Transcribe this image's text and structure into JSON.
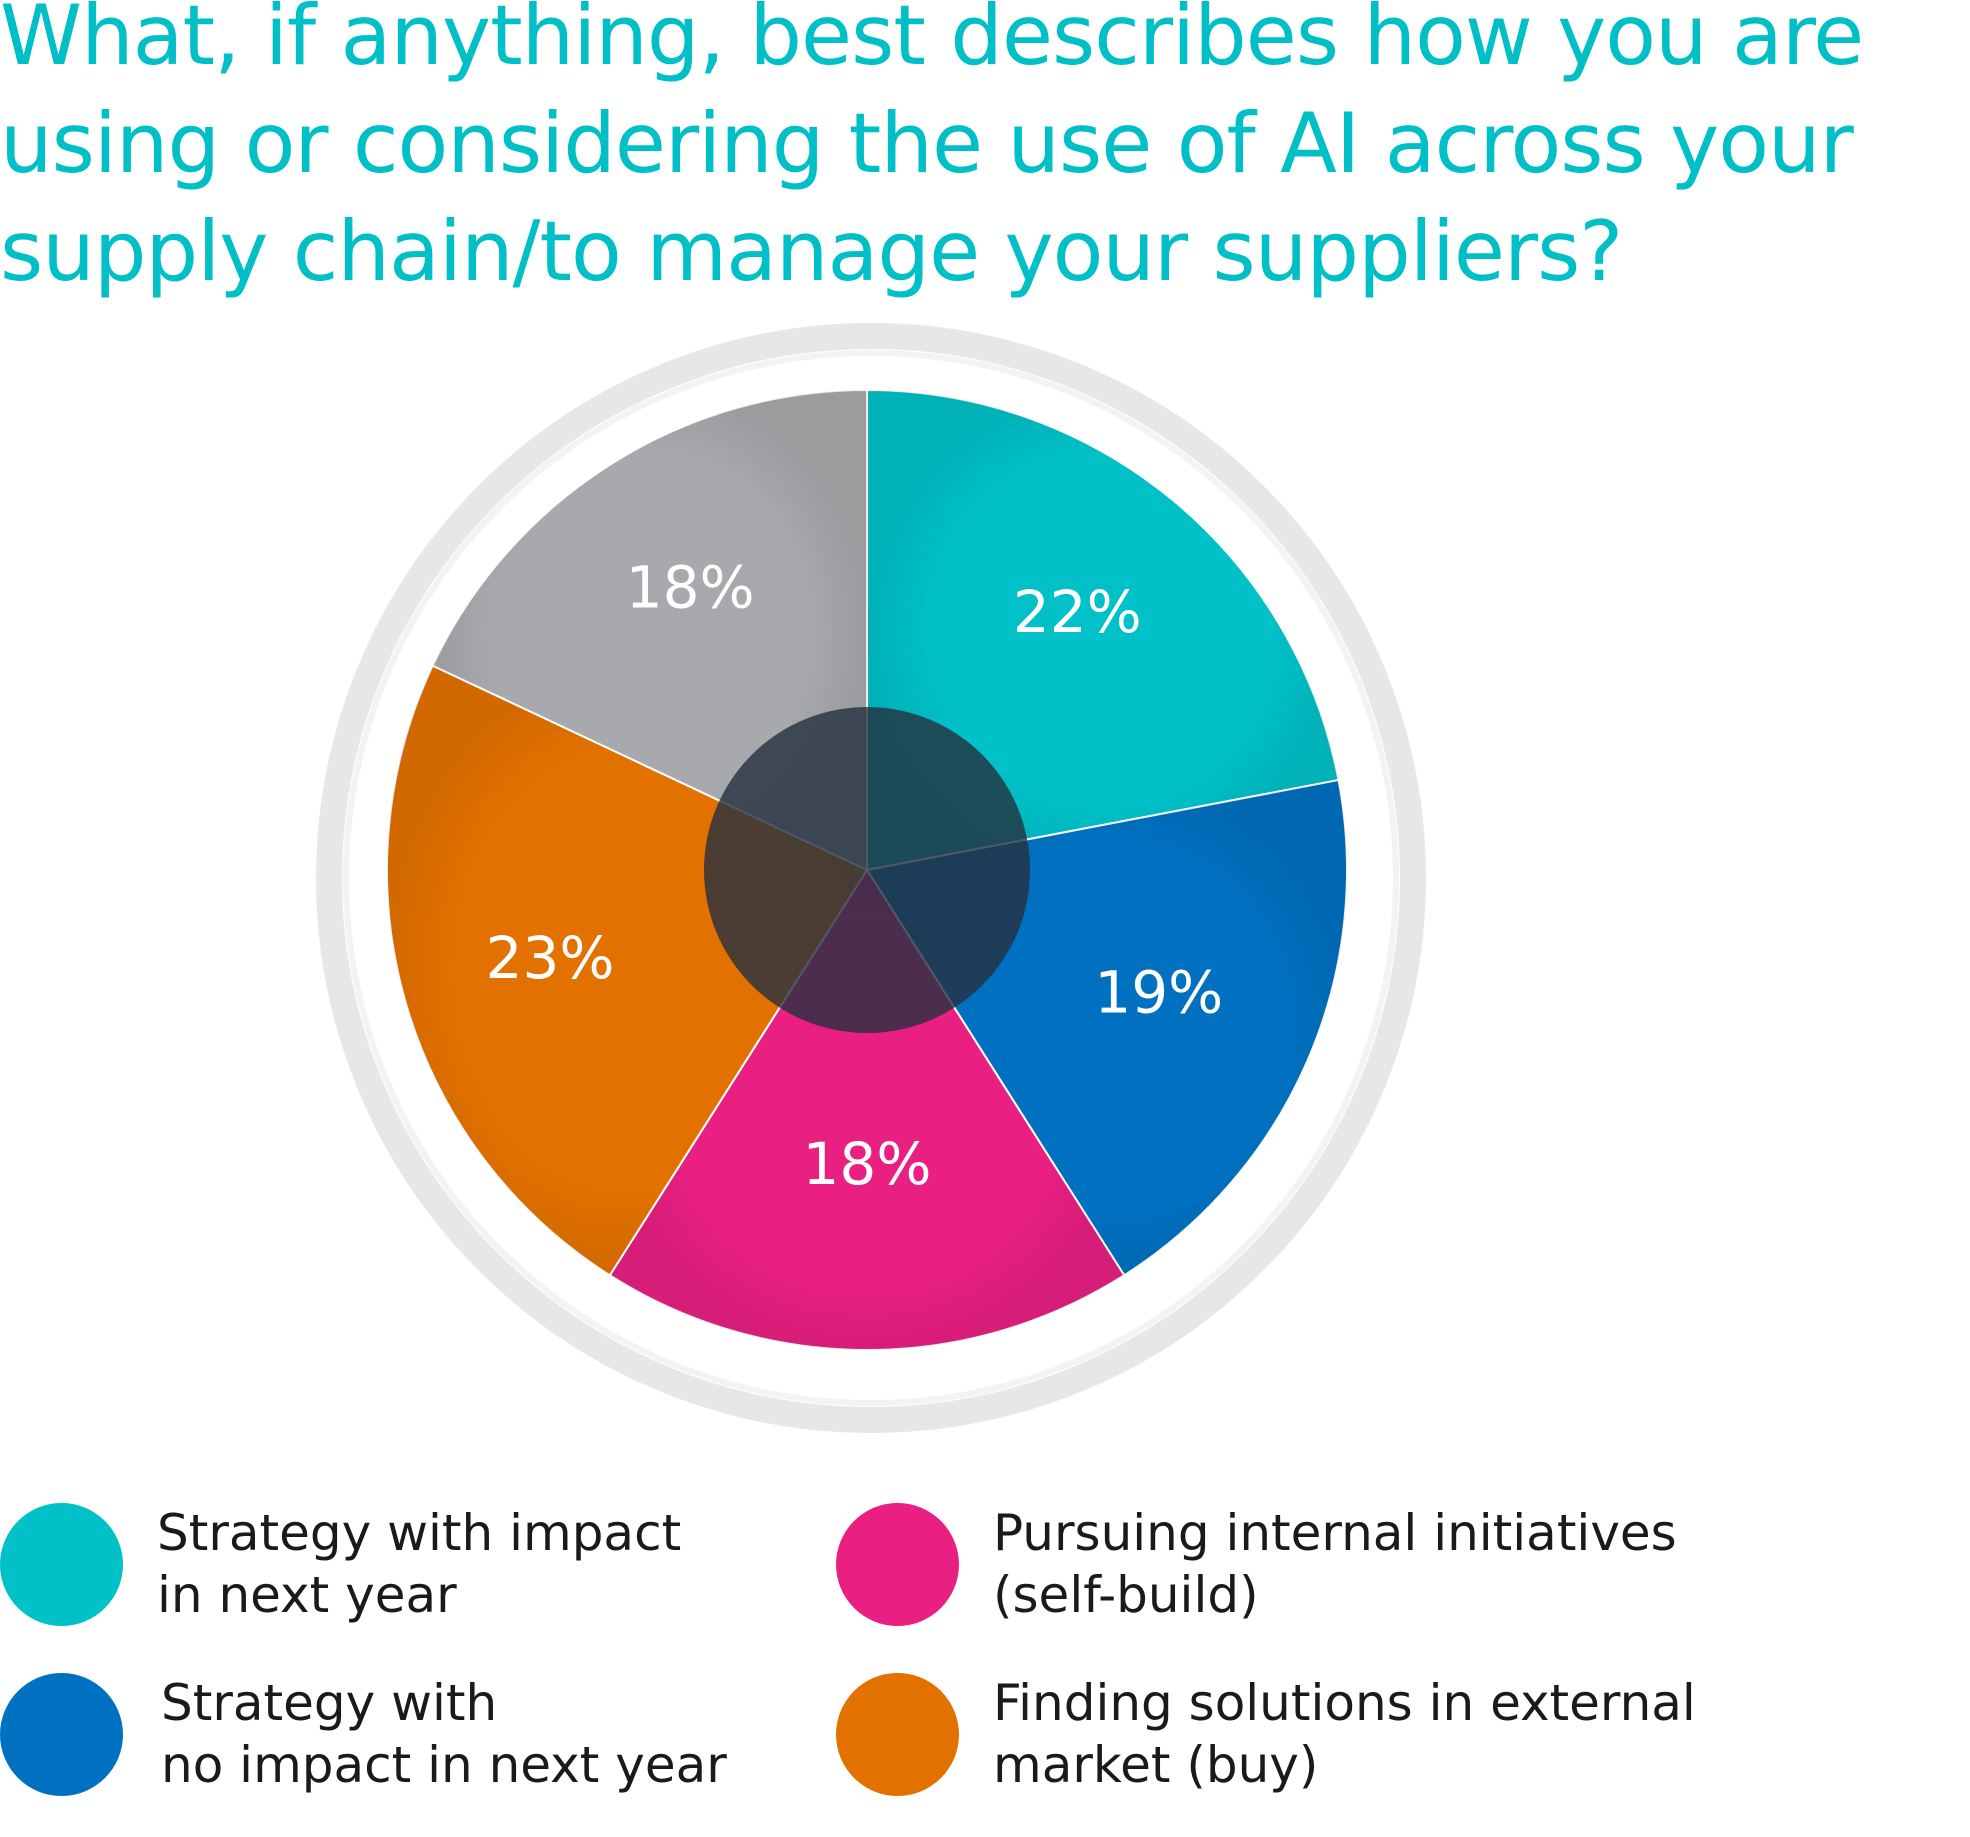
{
  "title": {
    "lines": [
      "What, if anything, best describes how you are",
      "using or considering the use of AI across your",
      "supply chain/to manage your suppliers?"
    ]
  },
  "colors": {
    "title": "#00bfc6",
    "ring": "#e6e7e9",
    "hub": "#243140",
    "label": "#ffffff"
  },
  "chart_data": {
    "type": "pie",
    "slices": [
      {
        "label": "Strategy with impact in next year",
        "value": 22,
        "display": "22%",
        "color": "#00c0c8"
      },
      {
        "label": "Strategy with no impact in next year",
        "value": 19,
        "display": "19%",
        "color": "#0071c1"
      },
      {
        "label": "Pursuing internal initiatives (self-build)",
        "value": 18,
        "display": "18%",
        "color": "#e91f82"
      },
      {
        "label": "Finding solutions in external market (buy)",
        "value": 23,
        "display": "23%",
        "color": "#e37100"
      },
      {
        "label": "",
        "value": 18,
        "display": "18%",
        "color": "#a7a9ac"
      }
    ]
  },
  "legend": [
    {
      "lines": [
        "Strategy with impact",
        "in next year"
      ],
      "color": "#00c0c8"
    },
    {
      "lines": [
        "Strategy with",
        "no impact in next year"
      ],
      "color": "#0071c1"
    },
    {
      "lines": [
        "Pursuing internal initiatives",
        "(self-build)"
      ],
      "color": "#e91f82"
    },
    {
      "lines": [
        "Finding solutions in external",
        "market (buy)"
      ],
      "color": "#e37100"
    }
  ]
}
